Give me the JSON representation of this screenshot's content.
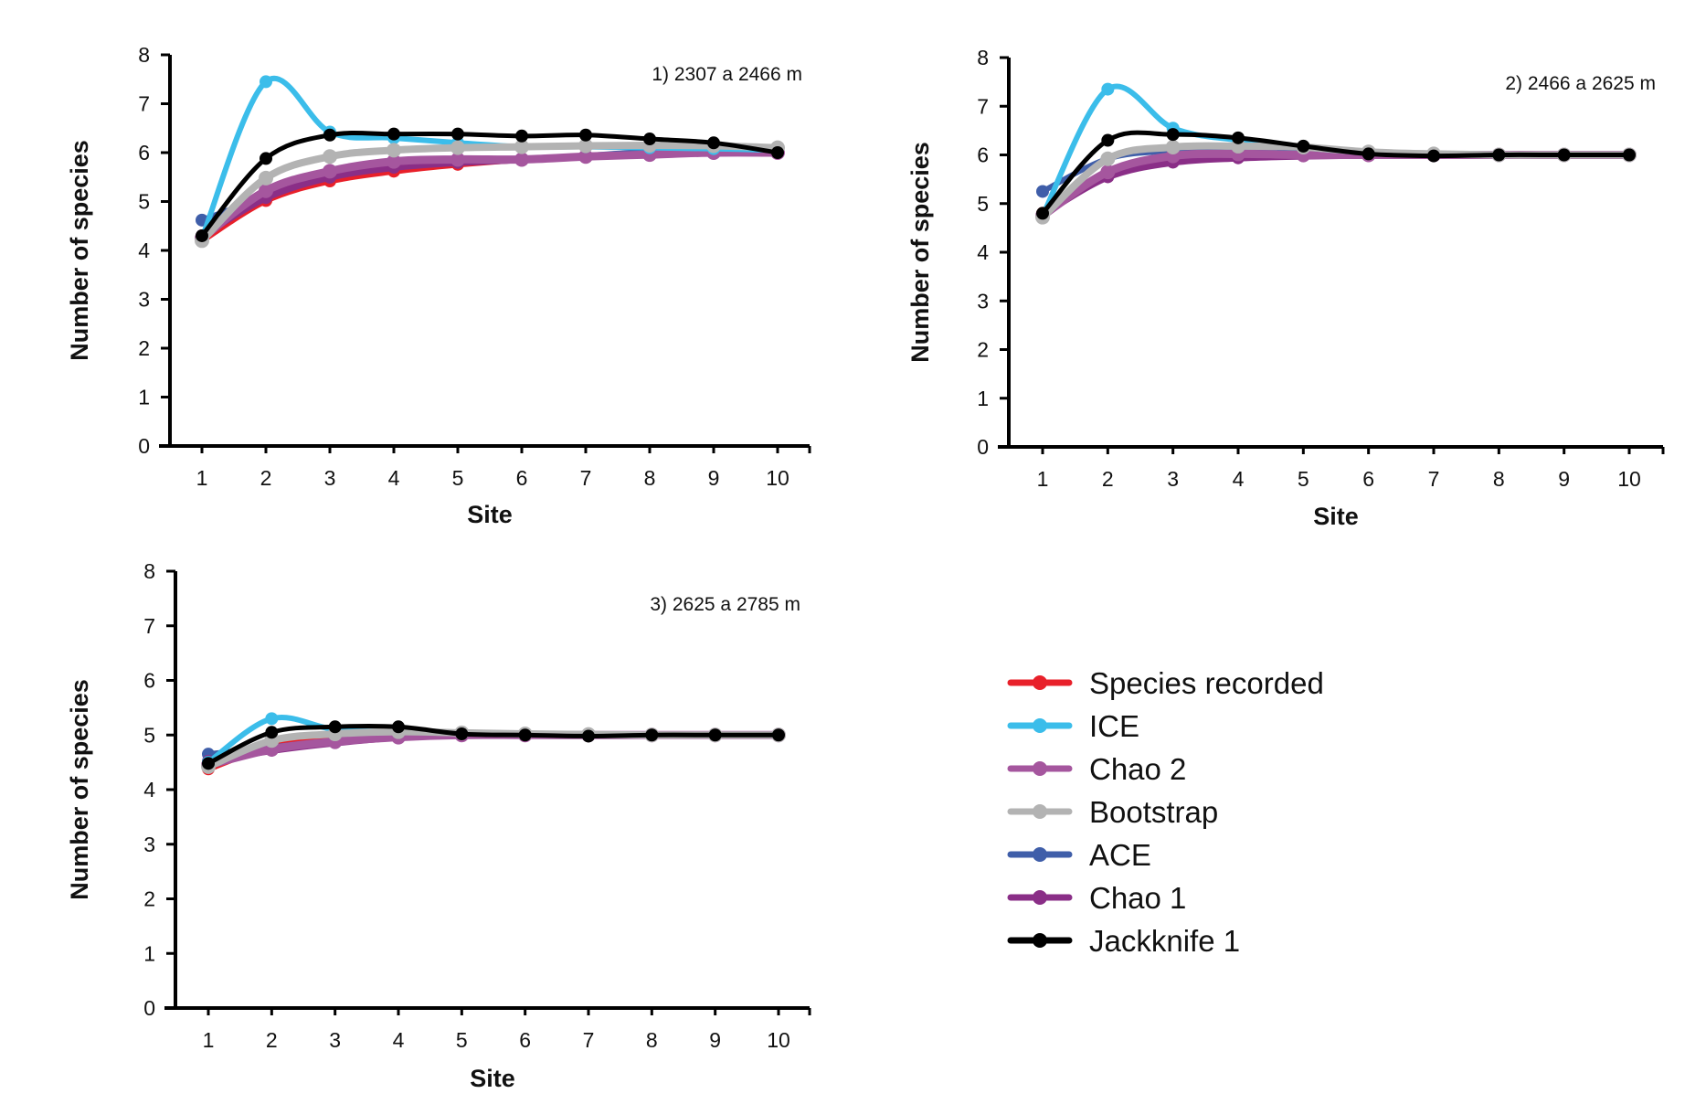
{
  "chart_data": [
    {
      "type": "line",
      "title": "1) 2307 a 2466 m",
      "xlabel": "Site",
      "ylabel": "Number of species",
      "x": [
        1,
        2,
        3,
        4,
        5,
        6,
        7,
        8,
        9,
        10
      ],
      "x_tick_labels": [
        "1",
        "2",
        "3",
        "4",
        "5",
        "6",
        "7",
        "8",
        "9",
        "10"
      ],
      "y_tick_labels": [
        "0",
        "1",
        "2",
        "3",
        "4",
        "5",
        "6",
        "7",
        "8"
      ],
      "ylim": [
        0,
        8
      ],
      "xlim": [
        0.4,
        10.6
      ],
      "grid": false,
      "series": [
        {
          "name": "Species recorded",
          "values": [
            4.2,
            5.02,
            5.42,
            5.62,
            5.76,
            5.86,
            5.92,
            5.96,
            6.0,
            6.0
          ]
        },
        {
          "name": "ICE",
          "values": [
            4.25,
            7.45,
            6.42,
            6.3,
            6.2,
            6.12,
            6.12,
            6.1,
            6.08,
            6.05
          ]
        },
        {
          "name": "Chao 2",
          "values": [
            4.25,
            5.22,
            5.62,
            5.82,
            5.86,
            5.86,
            5.92,
            5.96,
            6.0,
            6.0
          ]
        },
        {
          "name": "Bootstrap",
          "values": [
            4.2,
            5.48,
            5.92,
            6.05,
            6.1,
            6.12,
            6.14,
            6.15,
            6.14,
            6.1
          ]
        },
        {
          "name": "ACE",
          "values": [
            4.62,
            5.1,
            5.5,
            5.72,
            5.8,
            5.86,
            5.94,
            6.02,
            6.06,
            6.05
          ]
        },
        {
          "name": "Chao 1",
          "values": [
            4.3,
            5.08,
            5.5,
            5.7,
            5.8,
            5.86,
            5.92,
            5.96,
            6.0,
            6.0
          ]
        },
        {
          "name": "Jackknife 1",
          "values": [
            4.3,
            5.88,
            6.36,
            6.38,
            6.38,
            6.34,
            6.36,
            6.28,
            6.2,
            6.0
          ]
        }
      ]
    },
    {
      "type": "line",
      "title": "2) 2466 a 2625 m",
      "xlabel": "Site",
      "ylabel": "Number of species",
      "x": [
        1,
        2,
        3,
        4,
        5,
        6,
        7,
        8,
        9,
        10
      ],
      "x_tick_labels": [
        "1",
        "2",
        "3",
        "4",
        "5",
        "6",
        "7",
        "8",
        "9",
        "10"
      ],
      "y_tick_labels": [
        "0",
        "1",
        "2",
        "3",
        "4",
        "5",
        "6",
        "7",
        "8"
      ],
      "ylim": [
        0,
        8
      ],
      "xlim": [
        0.4,
        10.6
      ],
      "grid": false,
      "series": [
        {
          "name": "Species recorded",
          "values": [
            4.8,
            5.6,
            5.9,
            5.96,
            6.0,
            6.0,
            6.0,
            6.0,
            6.0,
            6.0
          ]
        },
        {
          "name": "ICE",
          "values": [
            4.75,
            7.35,
            6.55,
            6.3,
            6.15,
            6.05,
            6.02,
            6.0,
            6.0,
            6.0
          ]
        },
        {
          "name": "Chao 2",
          "values": [
            4.75,
            5.65,
            5.98,
            6.02,
            6.0,
            6.0,
            6.0,
            6.0,
            6.0,
            6.0
          ]
        },
        {
          "name": "Bootstrap",
          "values": [
            4.72,
            5.92,
            6.16,
            6.18,
            6.16,
            6.06,
            6.02,
            6.0,
            6.0,
            6.0
          ]
        },
        {
          "name": "ACE",
          "values": [
            5.25,
            5.92,
            6.08,
            6.1,
            6.08,
            6.02,
            6.0,
            6.0,
            6.0,
            6.0
          ]
        },
        {
          "name": "Chao 1",
          "values": [
            4.78,
            5.55,
            5.85,
            5.94,
            5.98,
            6.0,
            6.0,
            6.0,
            6.0,
            6.0
          ]
        },
        {
          "name": "Jackknife 1",
          "values": [
            4.8,
            6.3,
            6.42,
            6.35,
            6.18,
            6.02,
            5.98,
            6.0,
            6.0,
            6.0
          ]
        }
      ]
    },
    {
      "type": "line",
      "title": "3) 2625 a 2785 m",
      "xlabel": "Site",
      "ylabel": "Number of species",
      "x": [
        1,
        2,
        3,
        4,
        5,
        6,
        7,
        8,
        9,
        10
      ],
      "x_tick_labels": [
        "1",
        "2",
        "3",
        "4",
        "5",
        "6",
        "7",
        "8",
        "9",
        "10"
      ],
      "y_tick_labels": [
        "0",
        "1",
        "2",
        "3",
        "4",
        "5",
        "6",
        "7",
        "8"
      ],
      "ylim": [
        0,
        8
      ],
      "xlim": [
        0.4,
        10.6
      ],
      "grid": false,
      "series": [
        {
          "name": "Species recorded",
          "values": [
            4.38,
            4.8,
            4.94,
            4.98,
            5.0,
            5.0,
            5.0,
            5.0,
            5.0,
            5.0
          ]
        },
        {
          "name": "ICE",
          "values": [
            4.5,
            5.3,
            5.1,
            5.08,
            5.04,
            5.02,
            5.0,
            5.0,
            5.0,
            5.0
          ]
        },
        {
          "name": "Chao 2",
          "values": [
            4.45,
            4.74,
            4.88,
            4.96,
            5.0,
            5.0,
            5.0,
            5.0,
            5.0,
            5.0
          ]
        },
        {
          "name": "Bootstrap",
          "values": [
            4.42,
            4.9,
            5.02,
            5.06,
            5.04,
            5.02,
            5.01,
            5.0,
            5.0,
            5.0
          ]
        },
        {
          "name": "ACE",
          "values": [
            4.65,
            4.78,
            4.9,
            4.98,
            5.0,
            5.0,
            5.0,
            5.0,
            5.0,
            5.0
          ]
        },
        {
          "name": "Chao 1",
          "values": [
            4.52,
            4.72,
            4.86,
            4.96,
            5.0,
            5.0,
            5.0,
            5.0,
            5.0,
            5.0
          ]
        },
        {
          "name": "Jackknife 1",
          "values": [
            4.48,
            5.05,
            5.15,
            5.15,
            5.02,
            5.0,
            4.98,
            5.0,
            5.0,
            5.0
          ]
        }
      ]
    }
  ],
  "legend": {
    "placement": "bottom-right",
    "items": [
      {
        "name": "Species recorded",
        "color": "#e8202a"
      },
      {
        "name": "ICE",
        "color": "#3bbdea"
      },
      {
        "name": "Chao 2",
        "color": "#a5569e"
      },
      {
        "name": "Bootstrap",
        "color": "#b3b3b3"
      },
      {
        "name": "ACE",
        "color": "#3f5ea9"
      },
      {
        "name": "Chao 1",
        "color": "#8a2e87"
      },
      {
        "name": "Jackknife 1",
        "color": "#000000"
      }
    ]
  },
  "draw_order": [
    "Species recorded",
    "ACE",
    "Chao 1",
    "Chao 2",
    "ICE",
    "Bootstrap",
    "Jackknife 1"
  ]
}
